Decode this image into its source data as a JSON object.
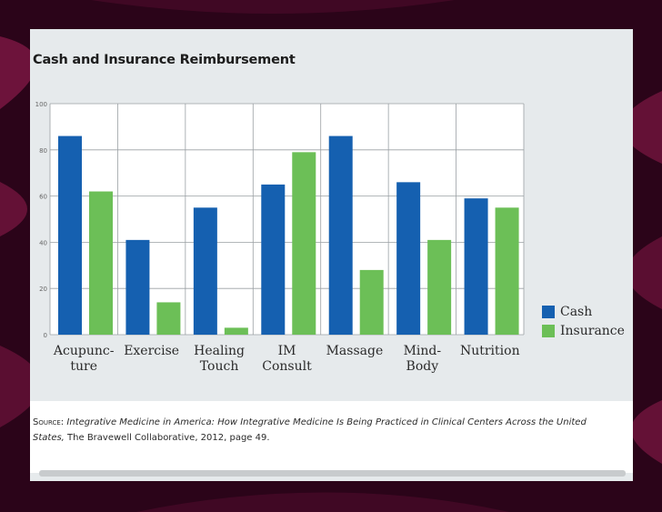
{
  "source": {
    "prefix": "Source:",
    "title": "Integrative Medicine in America: How Integrative Medicine Is Being Practiced in Clinical Centers Across the United States,",
    "rest": "The Bravewell Collaborative, 2012, page 49."
  },
  "chart_data": {
    "type": "bar",
    "title": "Cash and Insurance Reimbursement",
    "xlabel": "",
    "ylabel": "",
    "ylim": [
      0,
      100
    ],
    "yticks": [
      "0",
      "20",
      "40",
      "60",
      "80",
      "100"
    ],
    "grid": true,
    "legend_position": "right",
    "categories": [
      "Acupunc-\nture",
      "Exercise",
      "Healing\nTouch",
      "IM\nConsult",
      "Massage",
      "Mind-\nBody",
      "Nutrition"
    ],
    "series": [
      {
        "name": "Cash",
        "color": "#1560b0",
        "values": [
          86,
          41,
          55,
          65,
          86,
          66,
          59
        ]
      },
      {
        "name": "Insurance",
        "color": "#6cbf57",
        "values": [
          62,
          14,
          3,
          79,
          28,
          41,
          55
        ]
      }
    ]
  }
}
